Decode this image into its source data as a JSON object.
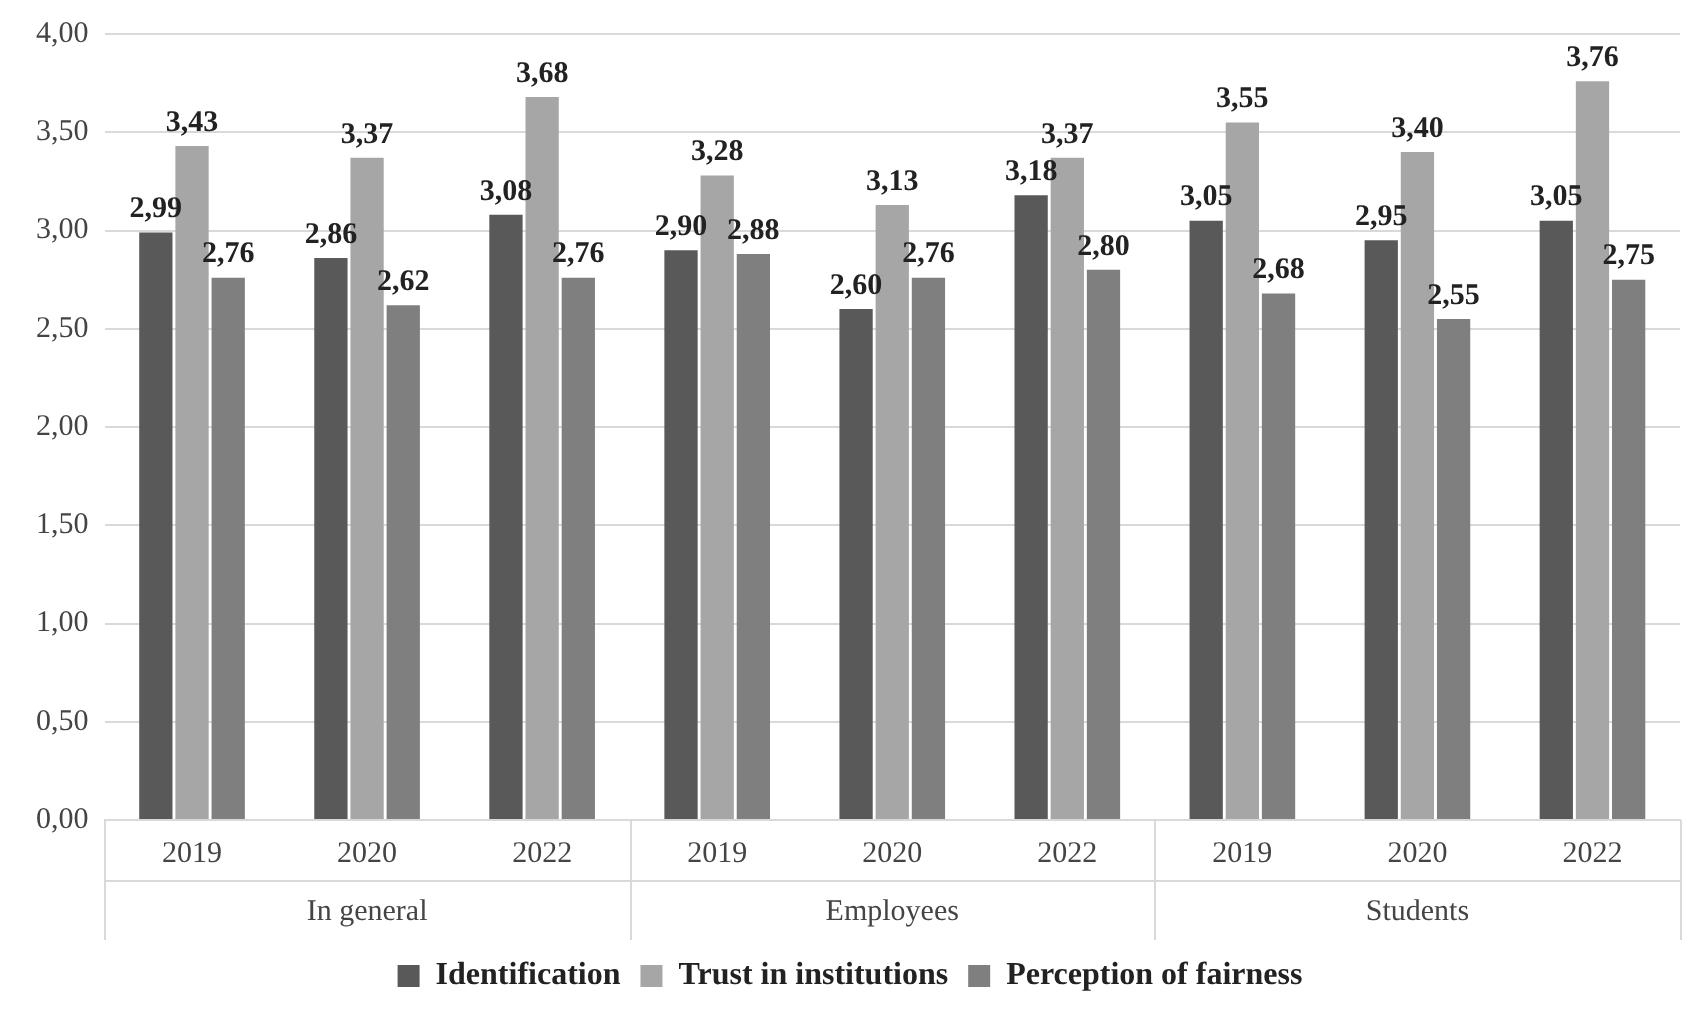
{
  "chart_data": {
    "type": "bar",
    "categories": [
      "2019",
      "2020",
      "2022",
      "2019",
      "2020",
      "2022",
      "2019",
      "2020",
      "2022"
    ],
    "annotations": [
      "In general",
      "Employees",
      "Students"
    ],
    "series": [
      {
        "name": "Identification",
        "color": "#595959",
        "values": [
          2.99,
          2.86,
          3.08,
          2.9,
          2.6,
          3.18,
          3.05,
          2.95,
          3.05
        ],
        "value_labels": [
          "2,99",
          "2,86",
          "3,08",
          "2,90",
          "2,60",
          "3,18",
          "3,05",
          "2,95",
          "3,05"
        ]
      },
      {
        "name": "Trust in institutions",
        "color": "#a6a6a6",
        "values": [
          3.43,
          3.37,
          3.68,
          3.28,
          3.13,
          3.37,
          3.55,
          3.4,
          3.76
        ],
        "value_labels": [
          "3,43",
          "3,37",
          "3,68",
          "3,28",
          "3,13",
          "3,37",
          "3,55",
          "3,40",
          "3,76"
        ]
      },
      {
        "name": "Perception of fairness",
        "color": "#7f7f7f",
        "values": [
          2.76,
          2.62,
          2.76,
          2.88,
          2.76,
          2.8,
          2.68,
          2.55,
          2.75
        ],
        "value_labels": [
          "2,76",
          "2,62",
          "2,76",
          "2,88",
          "2,76",
          "2,80",
          "2,68",
          "2,55",
          "2,75"
        ]
      }
    ],
    "ylim": [
      0,
      4
    ],
    "yticks": [
      {
        "value": 0,
        "label": "0,00"
      },
      {
        "value": 0.5,
        "label": "0,50"
      },
      {
        "value": 1,
        "label": "1,00"
      },
      {
        "value": 1.5,
        "label": "1,50"
      },
      {
        "value": 2,
        "label": "2,00"
      },
      {
        "value": 2.5,
        "label": "2,50"
      },
      {
        "value": 3,
        "label": "3,00"
      },
      {
        "value": 3.5,
        "label": "3,50"
      },
      {
        "value": 4,
        "label": "4,00"
      }
    ],
    "grid": "y",
    "legend": "bottom"
  }
}
